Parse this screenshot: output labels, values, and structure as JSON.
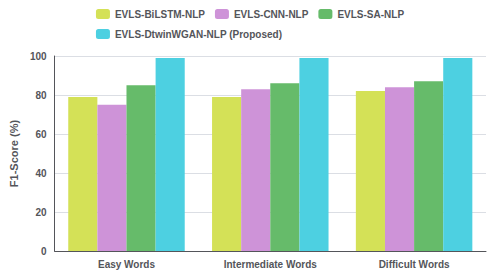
{
  "chart_data": {
    "type": "bar",
    "categories": [
      "Easy Words",
      "Intermediate Words",
      "Difficult Words"
    ],
    "series": [
      {
        "name": "EVLS-BiLSTM-NLP",
        "color": "#d4e157",
        "values": [
          79,
          79,
          82
        ]
      },
      {
        "name": "EVLS-CNN-NLP",
        "color": "#ce93d8",
        "values": [
          75,
          83,
          84
        ]
      },
      {
        "name": "EVLS-SA-NLP",
        "color": "#66bb6a",
        "values": [
          85,
          86,
          87
        ]
      },
      {
        "name": "EVLS-DtwinWGAN-NLP (Proposed)",
        "color": "#4dd0e1",
        "values": [
          99,
          99,
          99
        ]
      }
    ],
    "ylabel": "F1-Score (%)",
    "ylim": [
      0,
      100
    ],
    "yticks": [
      0,
      20,
      40,
      60,
      80,
      100
    ],
    "grid": true,
    "legend": "top"
  }
}
